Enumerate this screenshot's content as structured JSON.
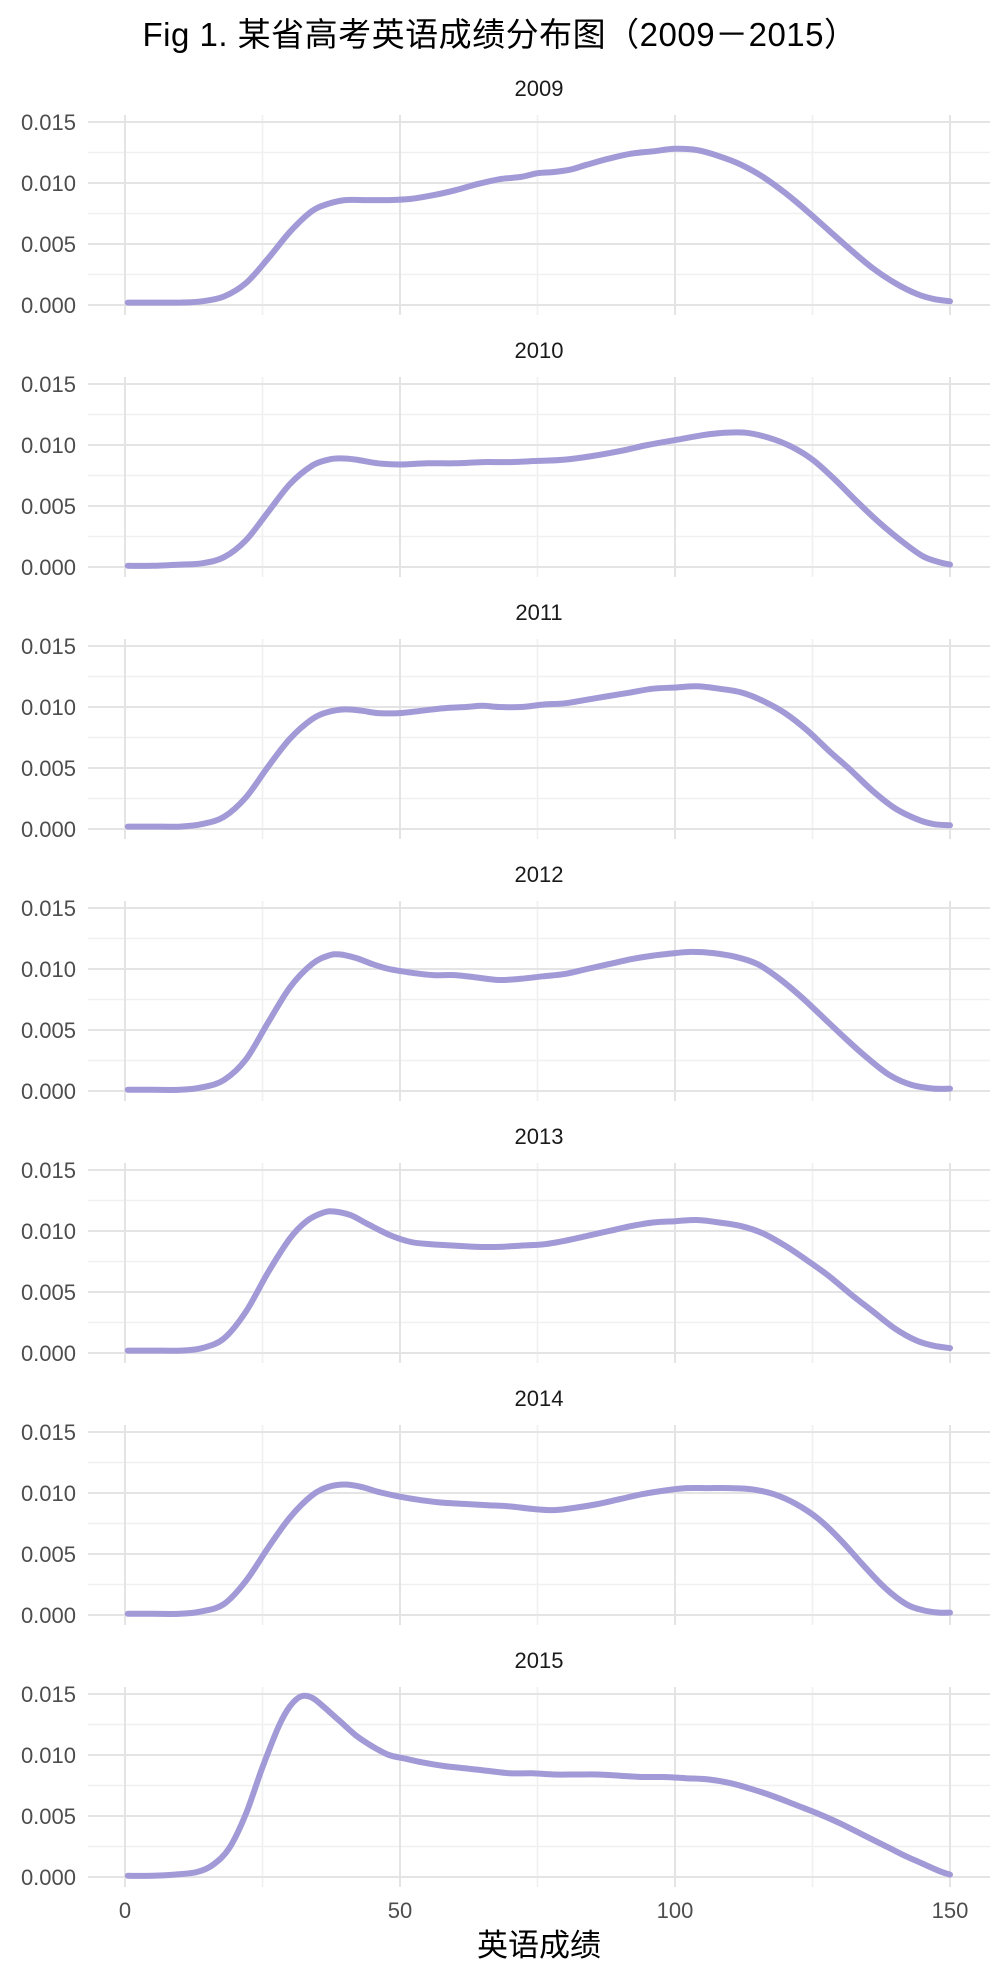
{
  "page": {
    "title": "Fig 1. 某省高考英语成绩分布图（2009－2015）"
  },
  "chart_data": {
    "type": "line",
    "subtype": "density-small-multiples-faceted-by-year",
    "title": "Fig 1. 某省高考英语成绩分布图（2009－2015）",
    "xlabel": "英语成绩",
    "ylabel": "",
    "grid": "on",
    "legend": "none",
    "xlim": [
      -7.5,
      157.5
    ],
    "ylim": [
      -0.0008,
      0.0155
    ],
    "x_ticks": [
      0,
      50,
      100,
      150
    ],
    "x_minor_ticks": [
      25,
      75,
      125
    ],
    "y_ticks": [
      0,
      0.005,
      0.01,
      0.015
    ],
    "y_tick_labels": [
      "0.000",
      "0.005",
      "0.010",
      "0.015"
    ],
    "y_minor_ticks": [
      0.0025,
      0.0075,
      0.0125
    ],
    "line_color": "#a19ad7",
    "grid_major_color": "#e4e4e4",
    "grid_minor_color": "#f0f0f0",
    "tick_text_color": "#4d4d4d",
    "strip_text_color": "#1a1a1a",
    "facets": [
      {
        "label": "2009",
        "points": [
          [
            0.5,
            0.0002
          ],
          [
            5,
            0.0002
          ],
          [
            10,
            0.0002
          ],
          [
            14,
            0.0003
          ],
          [
            18,
            0.0007
          ],
          [
            22,
            0.0018
          ],
          [
            26,
            0.0038
          ],
          [
            30,
            0.006
          ],
          [
            34,
            0.0077
          ],
          [
            37,
            0.0083
          ],
          [
            40,
            0.0086
          ],
          [
            44,
            0.0086
          ],
          [
            48,
            0.0086
          ],
          [
            52,
            0.0087
          ],
          [
            56,
            0.009
          ],
          [
            60,
            0.0094
          ],
          [
            64,
            0.0099
          ],
          [
            68,
            0.0103
          ],
          [
            72,
            0.0105
          ],
          [
            75,
            0.0108
          ],
          [
            78,
            0.0109
          ],
          [
            81,
            0.0111
          ],
          [
            84,
            0.0115
          ],
          [
            88,
            0.012
          ],
          [
            92,
            0.0124
          ],
          [
            96,
            0.0126
          ],
          [
            100,
            0.0128
          ],
          [
            104,
            0.0127
          ],
          [
            108,
            0.0122
          ],
          [
            112,
            0.0115
          ],
          [
            116,
            0.0105
          ],
          [
            120,
            0.0092
          ],
          [
            124,
            0.0077
          ],
          [
            128,
            0.0061
          ],
          [
            132,
            0.0045
          ],
          [
            136,
            0.003
          ],
          [
            140,
            0.0018
          ],
          [
            144,
            0.0009
          ],
          [
            147,
            0.0005
          ],
          [
            150,
            0.0003
          ]
        ]
      },
      {
        "label": "2010",
        "points": [
          [
            0.5,
            0.0001
          ],
          [
            5,
            0.0001
          ],
          [
            10,
            0.0002
          ],
          [
            14,
            0.0003
          ],
          [
            18,
            0.0008
          ],
          [
            22,
            0.0022
          ],
          [
            26,
            0.0045
          ],
          [
            30,
            0.0068
          ],
          [
            34,
            0.0083
          ],
          [
            37,
            0.0088
          ],
          [
            39,
            0.0089
          ],
          [
            42,
            0.0088
          ],
          [
            46,
            0.0085
          ],
          [
            50,
            0.0084
          ],
          [
            55,
            0.0085
          ],
          [
            60,
            0.0085
          ],
          [
            65,
            0.0086
          ],
          [
            70,
            0.0086
          ],
          [
            75,
            0.0087
          ],
          [
            80,
            0.0088
          ],
          [
            85,
            0.0091
          ],
          [
            90,
            0.0095
          ],
          [
            95,
            0.01
          ],
          [
            100,
            0.0104
          ],
          [
            105,
            0.0108
          ],
          [
            109,
            0.011
          ],
          [
            113,
            0.011
          ],
          [
            117,
            0.0106
          ],
          [
            121,
            0.0099
          ],
          [
            125,
            0.0088
          ],
          [
            129,
            0.0072
          ],
          [
            133,
            0.0054
          ],
          [
            137,
            0.0037
          ],
          [
            141,
            0.0022
          ],
          [
            145,
            0.0009
          ],
          [
            148,
            0.0004
          ],
          [
            150,
            0.0002
          ]
        ]
      },
      {
        "label": "2011",
        "points": [
          [
            0.5,
            0.0002
          ],
          [
            5,
            0.0002
          ],
          [
            10,
            0.0002
          ],
          [
            14,
            0.0004
          ],
          [
            18,
            0.001
          ],
          [
            22,
            0.0026
          ],
          [
            26,
            0.0051
          ],
          [
            30,
            0.0074
          ],
          [
            34,
            0.009
          ],
          [
            37,
            0.0096
          ],
          [
            40,
            0.0098
          ],
          [
            43,
            0.0097
          ],
          [
            46,
            0.0095
          ],
          [
            50,
            0.0095
          ],
          [
            54,
            0.0097
          ],
          [
            58,
            0.0099
          ],
          [
            62,
            0.01
          ],
          [
            65,
            0.0101
          ],
          [
            68,
            0.01
          ],
          [
            72,
            0.01
          ],
          [
            76,
            0.0102
          ],
          [
            80,
            0.0103
          ],
          [
            84,
            0.0106
          ],
          [
            88,
            0.0109
          ],
          [
            92,
            0.0112
          ],
          [
            96,
            0.0115
          ],
          [
            100,
            0.0116
          ],
          [
            104,
            0.0117
          ],
          [
            108,
            0.0115
          ],
          [
            112,
            0.0112
          ],
          [
            116,
            0.0105
          ],
          [
            120,
            0.0095
          ],
          [
            124,
            0.0081
          ],
          [
            128,
            0.0064
          ],
          [
            132,
            0.0048
          ],
          [
            136,
            0.0031
          ],
          [
            140,
            0.0017
          ],
          [
            144,
            0.0008
          ],
          [
            147,
            0.0004
          ],
          [
            150,
            0.0003
          ]
        ]
      },
      {
        "label": "2012",
        "points": [
          [
            0.5,
            0.0001
          ],
          [
            5,
            0.0001
          ],
          [
            10,
            0.0001
          ],
          [
            14,
            0.0003
          ],
          [
            18,
            0.0009
          ],
          [
            22,
            0.0026
          ],
          [
            26,
            0.0056
          ],
          [
            30,
            0.0085
          ],
          [
            34,
            0.0104
          ],
          [
            37,
            0.0111
          ],
          [
            39,
            0.0112
          ],
          [
            42,
            0.0109
          ],
          [
            45,
            0.0104
          ],
          [
            48,
            0.01
          ],
          [
            52,
            0.0097
          ],
          [
            56,
            0.0095
          ],
          [
            60,
            0.0095
          ],
          [
            64,
            0.0093
          ],
          [
            68,
            0.0091
          ],
          [
            72,
            0.0092
          ],
          [
            76,
            0.0094
          ],
          [
            80,
            0.0096
          ],
          [
            84,
            0.01
          ],
          [
            88,
            0.0104
          ],
          [
            92,
            0.0108
          ],
          [
            96,
            0.0111
          ],
          [
            100,
            0.0113
          ],
          [
            103,
            0.0114
          ],
          [
            107,
            0.0113
          ],
          [
            111,
            0.011
          ],
          [
            115,
            0.0104
          ],
          [
            119,
            0.0092
          ],
          [
            123,
            0.0077
          ],
          [
            127,
            0.006
          ],
          [
            131,
            0.0043
          ],
          [
            135,
            0.0027
          ],
          [
            139,
            0.0013
          ],
          [
            143,
            0.0005
          ],
          [
            147,
            0.0002
          ],
          [
            150,
            0.0002
          ]
        ]
      },
      {
        "label": "2013",
        "points": [
          [
            0.5,
            0.0002
          ],
          [
            5,
            0.0002
          ],
          [
            10,
            0.0002
          ],
          [
            14,
            0.0004
          ],
          [
            18,
            0.0012
          ],
          [
            22,
            0.0034
          ],
          [
            26,
            0.0066
          ],
          [
            30,
            0.0094
          ],
          [
            33,
            0.0108
          ],
          [
            36,
            0.0115
          ],
          [
            38,
            0.0116
          ],
          [
            41,
            0.0113
          ],
          [
            44,
            0.0106
          ],
          [
            48,
            0.0097
          ],
          [
            52,
            0.0091
          ],
          [
            56,
            0.0089
          ],
          [
            60,
            0.0088
          ],
          [
            64,
            0.0087
          ],
          [
            68,
            0.0087
          ],
          [
            72,
            0.0088
          ],
          [
            76,
            0.0089
          ],
          [
            80,
            0.0092
          ],
          [
            84,
            0.0096
          ],
          [
            88,
            0.01
          ],
          [
            92,
            0.0104
          ],
          [
            96,
            0.0107
          ],
          [
            100,
            0.0108
          ],
          [
            104,
            0.0109
          ],
          [
            108,
            0.0107
          ],
          [
            112,
            0.0104
          ],
          [
            116,
            0.0098
          ],
          [
            120,
            0.0088
          ],
          [
            124,
            0.0076
          ],
          [
            128,
            0.0063
          ],
          [
            132,
            0.0048
          ],
          [
            136,
            0.0034
          ],
          [
            140,
            0.002
          ],
          [
            144,
            0.001
          ],
          [
            147,
            0.0006
          ],
          [
            150,
            0.0004
          ]
        ]
      },
      {
        "label": "2014",
        "points": [
          [
            0.5,
            0.0001
          ],
          [
            5,
            0.0001
          ],
          [
            10,
            0.0001
          ],
          [
            14,
            0.0003
          ],
          [
            18,
            0.0009
          ],
          [
            22,
            0.0028
          ],
          [
            26,
            0.0055
          ],
          [
            30,
            0.008
          ],
          [
            34,
            0.0098
          ],
          [
            37,
            0.0105
          ],
          [
            40,
            0.0107
          ],
          [
            43,
            0.0105
          ],
          [
            46,
            0.0101
          ],
          [
            50,
            0.0097
          ],
          [
            54,
            0.0094
          ],
          [
            58,
            0.0092
          ],
          [
            62,
            0.0091
          ],
          [
            66,
            0.009
          ],
          [
            70,
            0.0089
          ],
          [
            74,
            0.0087
          ],
          [
            78,
            0.0086
          ],
          [
            82,
            0.0088
          ],
          [
            86,
            0.0091
          ],
          [
            90,
            0.0095
          ],
          [
            94,
            0.0099
          ],
          [
            98,
            0.0102
          ],
          [
            102,
            0.0104
          ],
          [
            106,
            0.0104
          ],
          [
            110,
            0.0104
          ],
          [
            114,
            0.0103
          ],
          [
            118,
            0.0099
          ],
          [
            122,
            0.0091
          ],
          [
            126,
            0.0079
          ],
          [
            130,
            0.0062
          ],
          [
            134,
            0.0042
          ],
          [
            138,
            0.0023
          ],
          [
            142,
            0.0009
          ],
          [
            145,
            0.0004
          ],
          [
            148,
            0.0002
          ],
          [
            150,
            0.0002
          ]
        ]
      },
      {
        "label": "2015",
        "points": [
          [
            0.5,
            0.0001
          ],
          [
            5,
            0.0001
          ],
          [
            9,
            0.0002
          ],
          [
            13,
            0.0004
          ],
          [
            16,
            0.001
          ],
          [
            19,
            0.0024
          ],
          [
            22,
            0.0052
          ],
          [
            25,
            0.009
          ],
          [
            28,
            0.0124
          ],
          [
            30,
            0.014
          ],
          [
            32,
            0.0148
          ],
          [
            34,
            0.0147
          ],
          [
            36,
            0.014
          ],
          [
            39,
            0.0128
          ],
          [
            42,
            0.0116
          ],
          [
            45,
            0.0107
          ],
          [
            48,
            0.01
          ],
          [
            51,
            0.0097
          ],
          [
            54,
            0.0094
          ],
          [
            58,
            0.0091
          ],
          [
            62,
            0.0089
          ],
          [
            66,
            0.0087
          ],
          [
            70,
            0.0085
          ],
          [
            74,
            0.0085
          ],
          [
            78,
            0.0084
          ],
          [
            82,
            0.0084
          ],
          [
            86,
            0.0084
          ],
          [
            90,
            0.0083
          ],
          [
            94,
            0.0082
          ],
          [
            98,
            0.0082
          ],
          [
            102,
            0.0081
          ],
          [
            106,
            0.008
          ],
          [
            110,
            0.0077
          ],
          [
            114,
            0.0072
          ],
          [
            118,
            0.0066
          ],
          [
            122,
            0.0059
          ],
          [
            126,
            0.0052
          ],
          [
            130,
            0.0044
          ],
          [
            134,
            0.0035
          ],
          [
            138,
            0.0026
          ],
          [
            142,
            0.0017
          ],
          [
            145,
            0.0011
          ],
          [
            148,
            0.0005
          ],
          [
            150,
            0.0002
          ]
        ]
      }
    ]
  }
}
